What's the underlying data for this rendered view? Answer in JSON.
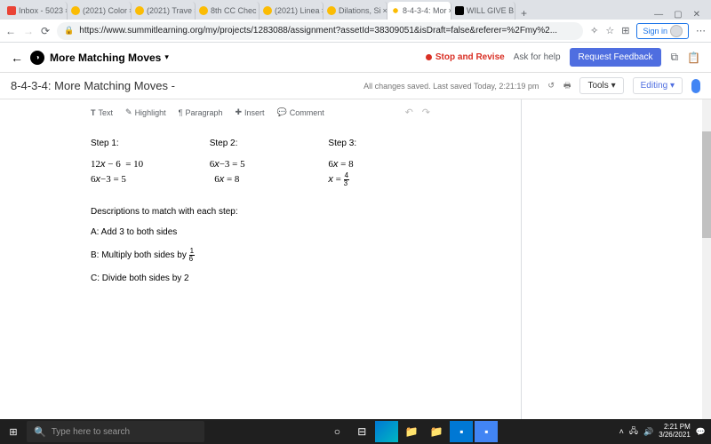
{
  "browser": {
    "tabs": [
      {
        "label": "Inbox - 5023",
        "fav": "fav-red"
      },
      {
        "label": "(2021) Color",
        "fav": "fav-orange"
      },
      {
        "label": "(2021) Trave",
        "fav": "fav-orange"
      },
      {
        "label": "8th CC Chec",
        "fav": "fav-orange"
      },
      {
        "label": "(2021) Linea",
        "fav": "fav-orange"
      },
      {
        "label": "Dilations, Si",
        "fav": "fav-orange"
      },
      {
        "label": "8-4-3-4: Mor",
        "fav": "fav-sun",
        "active": true
      },
      {
        "label": "WILL GIVE B",
        "fav": "fav-black"
      }
    ],
    "url": "https://www.summitlearning.org/my/projects/1283088/assignment?assetId=38309051&isDraft=false&referer=%2Fmy%2...",
    "signin": "Sign in"
  },
  "header": {
    "title": "More Matching Moves",
    "stop": "Stop and Revise",
    "ask": "Ask for help",
    "feedback": "Request Feedback"
  },
  "sub": {
    "title": "8-4-3-4: More Matching Moves -",
    "save_status": "All changes saved. Last saved Today, 2:21:19 pm",
    "tools": "Tools",
    "editing": "Editing"
  },
  "toolbar": {
    "text": "Text",
    "highlight": "Highlight",
    "paragraph": "Paragraph",
    "insert": "Insert",
    "comment": "Comment"
  },
  "doc": {
    "steps": [
      {
        "label": "Step 1:",
        "eqs": [
          "12x − 6  = 10",
          "6x−3 = 5"
        ]
      },
      {
        "label": "Step 2:",
        "eqs": [
          "6x−3 = 5",
          "6x = 8"
        ]
      },
      {
        "label": "Step 3:",
        "eqs": [
          "6x = 8",
          "x = 4/3"
        ]
      }
    ],
    "desc_intro": "Descriptions to match with each step:",
    "desc_a": "A: Add 3 to both sides",
    "desc_b_prefix": "B: Multiply both sides by ",
    "desc_b_frac_num": "1",
    "desc_b_frac_den": "6",
    "desc_c": "C: Divide both sides by 2"
  },
  "taskbar": {
    "search_placeholder": "Type here to search",
    "time": "2:21 PM",
    "date": "3/26/2021"
  }
}
